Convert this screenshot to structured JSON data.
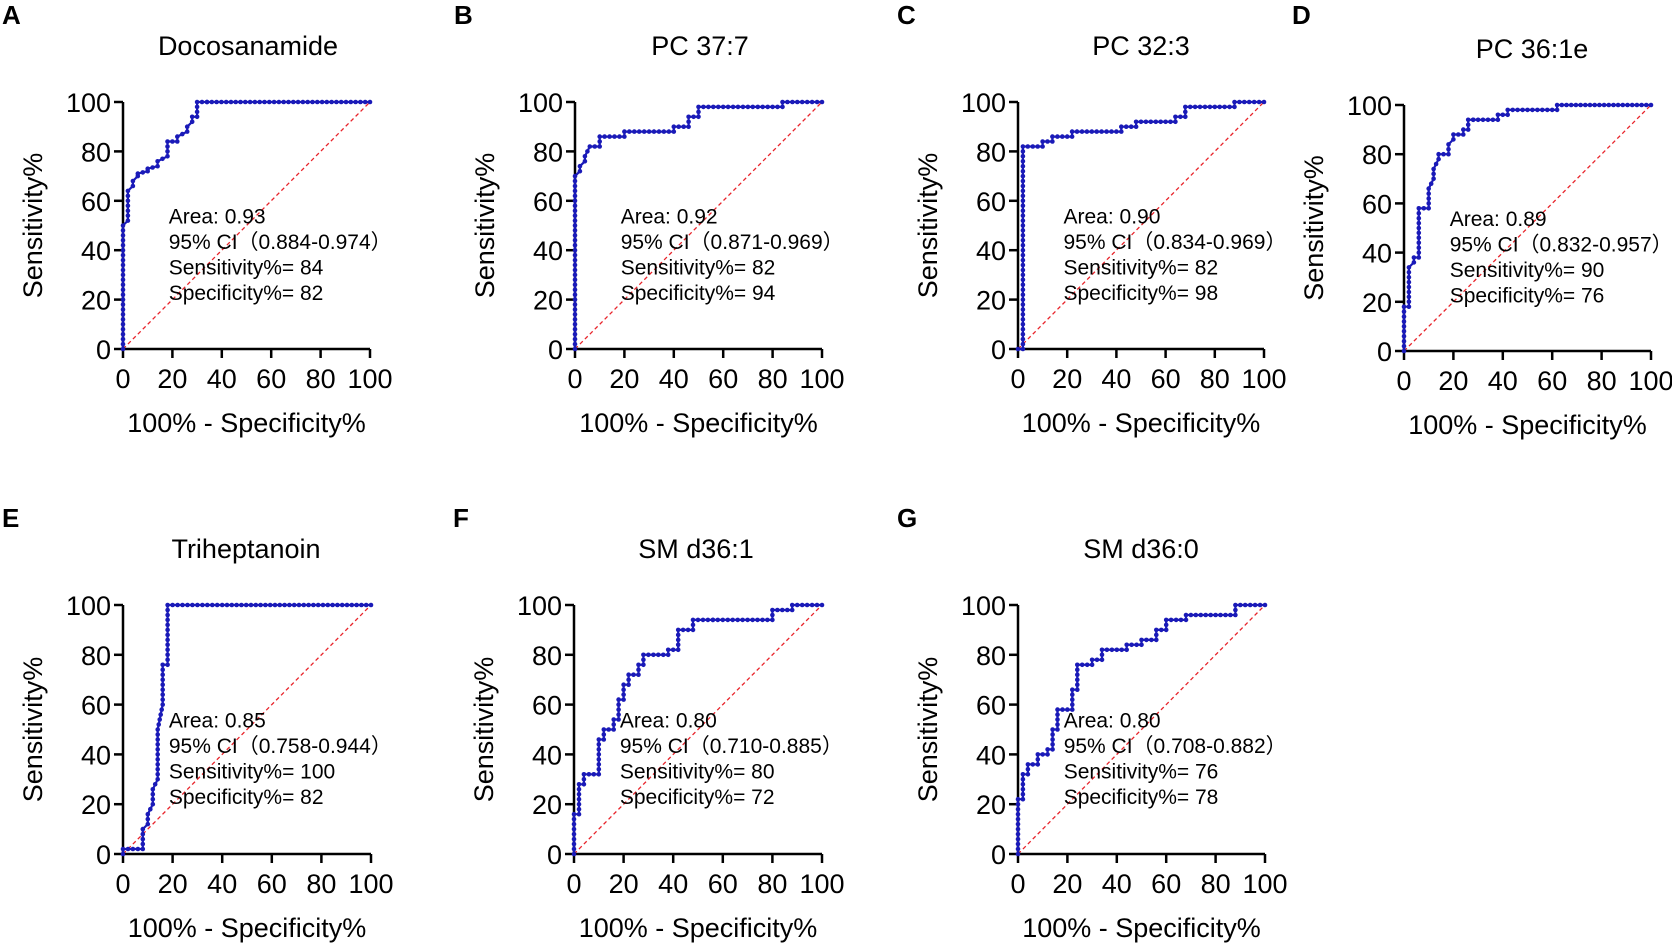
{
  "colors": {
    "curve": "#1a1ab8",
    "marker": "#1a1ab8",
    "reference": "#e8242b",
    "axis": "#000000"
  },
  "chart_data": [
    {
      "panel": "A",
      "type": "line",
      "title": "Docosanamide",
      "xlabel": "100% - Specificity%",
      "ylabel": "Sensitivity%",
      "xlim": [
        0,
        100
      ],
      "ylim": [
        0,
        100
      ],
      "xticks": [
        "0",
        "20",
        "40",
        "60",
        "80",
        "100"
      ],
      "yticks": [
        "0",
        "20",
        "40",
        "60",
        "80",
        "100"
      ],
      "stats": [
        "Area: 0.93",
        "95% CI（0.884-0.974）",
        "Sensitivity%= 84",
        "Specificity%= 82"
      ],
      "series": [
        {
          "name": "ROC",
          "x": [
            0,
            0,
            0,
            0,
            0,
            0,
            2,
            2,
            2,
            4,
            4,
            6,
            6,
            10,
            10,
            14,
            14,
            18,
            18,
            22,
            22,
            26,
            26,
            28,
            28,
            30,
            30,
            34,
            34,
            100
          ],
          "y": [
            0,
            10,
            20,
            30,
            40,
            50,
            52,
            60,
            64,
            66,
            68,
            70,
            71,
            72,
            73,
            74,
            76,
            78,
            84,
            84,
            86,
            88,
            90,
            92,
            94,
            94,
            100,
            100,
            100,
            100
          ]
        }
      ],
      "reference_line": {
        "x": [
          0,
          100
        ],
        "y": [
          0,
          100
        ]
      }
    },
    {
      "panel": "B",
      "type": "line",
      "title": "PC 37:7",
      "xlabel": "100% - Specificity%",
      "ylabel": "Sensitivity%",
      "xlim": [
        0,
        100
      ],
      "ylim": [
        0,
        100
      ],
      "xticks": [
        "0",
        "20",
        "40",
        "60",
        "80",
        "100"
      ],
      "yticks": [
        "0",
        "20",
        "40",
        "60",
        "80",
        "100"
      ],
      "stats": [
        "Area: 0.92",
        "95% CI（0.871-0.969）",
        "Sensitivity%= 82",
        "Specificity%= 94"
      ],
      "series": [
        {
          "name": "ROC",
          "x": [
            0,
            0,
            0,
            0,
            0,
            0,
            0,
            0,
            2,
            2,
            4,
            4,
            6,
            10,
            10,
            20,
            20,
            40,
            40,
            46,
            46,
            50,
            50,
            60,
            72,
            84,
            84,
            100
          ],
          "y": [
            0,
            10,
            20,
            30,
            40,
            50,
            60,
            70,
            72,
            74,
            76,
            78,
            82,
            82,
            86,
            86,
            88,
            88,
            90,
            90,
            94,
            94,
            98,
            98,
            98,
            98,
            100,
            100
          ]
        }
      ],
      "reference_line": {
        "x": [
          0,
          100
        ],
        "y": [
          0,
          100
        ]
      }
    },
    {
      "panel": "C",
      "type": "line",
      "title": "PC 32:3",
      "xlabel": "100% - Specificity%",
      "ylabel": "Sensitivity%",
      "xlim": [
        0,
        100
      ],
      "ylim": [
        0,
        100
      ],
      "xticks": [
        "0",
        "20",
        "40",
        "60",
        "80",
        "100"
      ],
      "yticks": [
        "0",
        "20",
        "40",
        "60",
        "80",
        "100"
      ],
      "stats": [
        "Area: 0.90",
        "95% CI（0.834-0.969）",
        "Sensitivity%= 82",
        "Specificity%= 98"
      ],
      "series": [
        {
          "name": "ROC",
          "x": [
            0,
            2,
            2,
            2,
            2,
            2,
            2,
            2,
            2,
            2,
            2,
            10,
            10,
            14,
            14,
            22,
            22,
            42,
            42,
            48,
            48,
            64,
            64,
            68,
            68,
            88,
            88,
            100
          ],
          "y": [
            0,
            0,
            8,
            20,
            30,
            40,
            50,
            60,
            70,
            80,
            82,
            82,
            84,
            84,
            86,
            86,
            88,
            88,
            90,
            90,
            92,
            92,
            94,
            94,
            98,
            98,
            100,
            100
          ]
        }
      ],
      "reference_line": {
        "x": [
          0,
          100
        ],
        "y": [
          0,
          100
        ]
      }
    },
    {
      "panel": "D",
      "type": "line",
      "title": "PC 36:1e",
      "xlabel": "100% - Specificity%",
      "ylabel": "Sensitivity%",
      "xlim": [
        0,
        100
      ],
      "ylim": [
        0,
        100
      ],
      "xticks": [
        "0",
        "20",
        "40",
        "60",
        "80",
        "100"
      ],
      "yticks": [
        "0",
        "20",
        "40",
        "60",
        "80",
        "100"
      ],
      "stats": [
        "Area: 0.89",
        "95% CI（0.832-0.957）",
        "Sensitivity%= 90",
        "Specificity%= 76"
      ],
      "series": [
        {
          "name": "ROC",
          "x": [
            0,
            0,
            2,
            2,
            4,
            4,
            6,
            6,
            10,
            10,
            12,
            12,
            14,
            14,
            18,
            18,
            20,
            20,
            24,
            24,
            26,
            26,
            28,
            28,
            38,
            38,
            42,
            42,
            62,
            62,
            100
          ],
          "y": [
            0,
            18,
            18,
            34,
            36,
            38,
            38,
            58,
            58,
            66,
            70,
            74,
            78,
            80,
            80,
            84,
            86,
            88,
            88,
            90,
            90,
            94,
            94,
            94,
            94,
            96,
            96,
            98,
            98,
            100,
            100
          ]
        }
      ],
      "reference_line": {
        "x": [
          0,
          100
        ],
        "y": [
          0,
          100
        ]
      }
    },
    {
      "panel": "E",
      "type": "line",
      "title": "Triheptanoin",
      "xlabel": "100% - Specificity%",
      "ylabel": "Sensitivity%",
      "xlim": [
        0,
        100
      ],
      "ylim": [
        0,
        100
      ],
      "xticks": [
        "0",
        "20",
        "40",
        "60",
        "80",
        "100"
      ],
      "yticks": [
        "0",
        "20",
        "40",
        "60",
        "80",
        "100"
      ],
      "stats": [
        "Area: 0.85",
        "95% CI（0.758-0.944）",
        "Sensitivity%= 100",
        "Specificity%= 82"
      ],
      "series": [
        {
          "name": "ROC",
          "x": [
            0,
            0,
            2,
            8,
            8,
            10,
            10,
            12,
            12,
            14,
            14,
            16,
            16,
            18,
            18,
            20,
            30,
            40,
            100
          ],
          "y": [
            0,
            2,
            2,
            2,
            10,
            12,
            16,
            20,
            26,
            30,
            50,
            60,
            76,
            76,
            100,
            100,
            100,
            100,
            100
          ]
        }
      ],
      "reference_line": {
        "x": [
          0,
          100
        ],
        "y": [
          0,
          100
        ]
      }
    },
    {
      "panel": "F",
      "type": "line",
      "title": "SM d36:1",
      "xlabel": "100% - Specificity%",
      "ylabel": "Sensitivity%",
      "xlim": [
        0,
        100
      ],
      "ylim": [
        0,
        100
      ],
      "xticks": [
        "0",
        "20",
        "40",
        "60",
        "80",
        "100"
      ],
      "yticks": [
        "0",
        "20",
        "40",
        "60",
        "80",
        "100"
      ],
      "stats": [
        "Area: 0.80",
        "95% CI（0.710-0.885）",
        "Sensitivity%= 80",
        "Specificity%= 72"
      ],
      "series": [
        {
          "name": "ROC",
          "x": [
            0,
            0,
            2,
            2,
            4,
            4,
            10,
            10,
            12,
            12,
            16,
            16,
            18,
            18,
            20,
            20,
            22,
            22,
            26,
            26,
            28,
            28,
            38,
            38,
            42,
            42,
            48,
            48,
            56,
            56,
            80,
            80,
            88,
            88,
            100
          ],
          "y": [
            0,
            16,
            16,
            28,
            28,
            32,
            32,
            46,
            46,
            50,
            50,
            54,
            54,
            62,
            62,
            68,
            68,
            72,
            72,
            76,
            76,
            80,
            80,
            82,
            82,
            90,
            90,
            94,
            94,
            94,
            94,
            98,
            98,
            100,
            100
          ]
        }
      ],
      "reference_line": {
        "x": [
          0,
          100
        ],
        "y": [
          0,
          100
        ]
      }
    },
    {
      "panel": "G",
      "type": "line",
      "title": "SM d36:0",
      "xlabel": "100% - Specificity%",
      "ylabel": "Sensitivity%",
      "xlim": [
        0,
        100
      ],
      "ylim": [
        0,
        100
      ],
      "xticks": [
        "0",
        "20",
        "40",
        "60",
        "80",
        "100"
      ],
      "yticks": [
        "0",
        "20",
        "40",
        "60",
        "80",
        "100"
      ],
      "stats": [
        "Area: 0.80",
        "95% CI（0.708-0.882）",
        "Sensitivity%= 76",
        "Specificity%= 78"
      ],
      "series": [
        {
          "name": "ROC",
          "x": [
            0,
            0,
            2,
            2,
            4,
            4,
            8,
            8,
            12,
            12,
            14,
            14,
            16,
            16,
            22,
            22,
            24,
            24,
            30,
            30,
            34,
            34,
            44,
            44,
            50,
            50,
            56,
            56,
            60,
            60,
            68,
            68,
            88,
            88,
            100
          ],
          "y": [
            0,
            22,
            22,
            32,
            32,
            36,
            36,
            40,
            40,
            42,
            42,
            50,
            50,
            58,
            58,
            66,
            66,
            76,
            76,
            78,
            78,
            82,
            82,
            84,
            84,
            86,
            86,
            90,
            90,
            94,
            94,
            96,
            96,
            100,
            100
          ]
        }
      ],
      "reference_line": {
        "x": [
          0,
          100
        ],
        "y": [
          0,
          100
        ]
      }
    }
  ]
}
